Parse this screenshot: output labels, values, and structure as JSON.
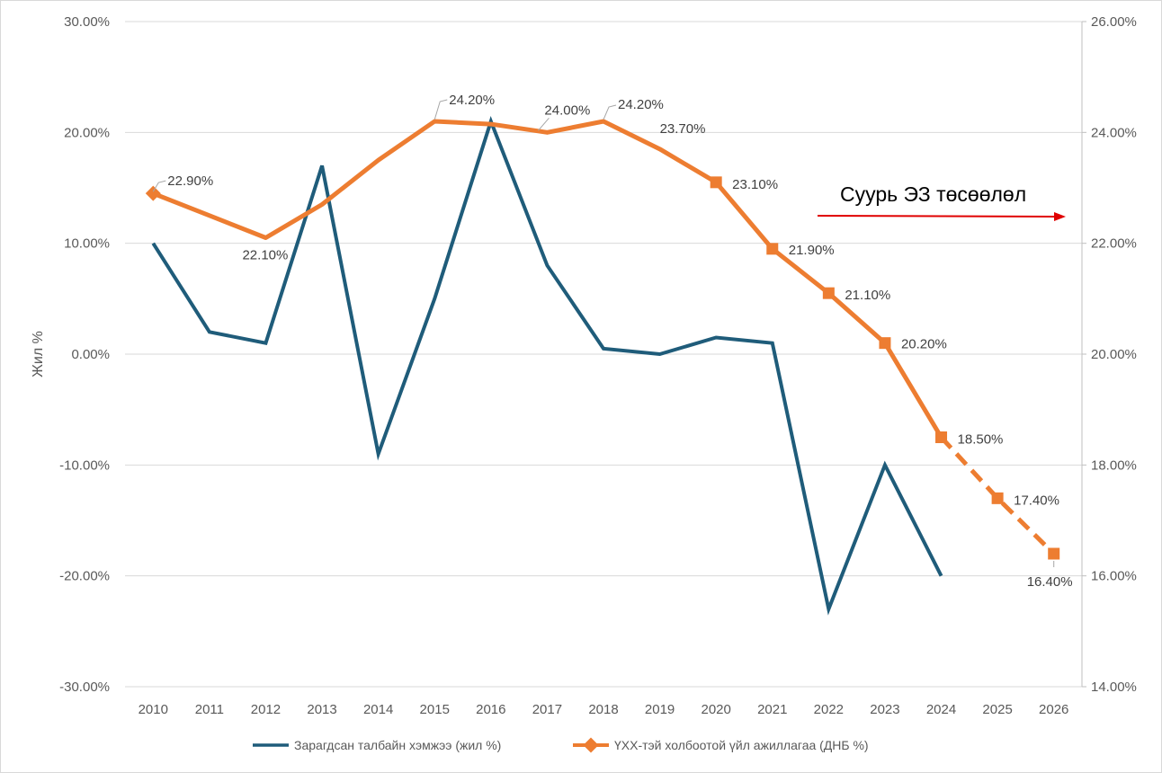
{
  "chart_data": {
    "type": "line",
    "title": "",
    "ylabel": "Жил %",
    "ylim": [
      -30,
      30
    ],
    "y2lim": [
      14,
      26
    ],
    "yticks": [
      "30.00%",
      "20.00%",
      "10.00%",
      "0.00%",
      "-10.00%",
      "-20.00%",
      "-30.00%"
    ],
    "y2ticks": [
      "26.00%",
      "24.00%",
      "22.00%",
      "20.00%",
      "18.00%",
      "16.00%",
      "14.00%"
    ],
    "categories": [
      "2010",
      "2011",
      "2012",
      "2013",
      "2014",
      "2015",
      "2016",
      "2017",
      "2018",
      "2019",
      "2020",
      "2021",
      "2022",
      "2023",
      "2024",
      "2025",
      "2026"
    ],
    "series": [
      {
        "name": "Зарагдсан талбайн хэмжээ (жил %)",
        "axis": "left",
        "color": "#1f5c7a",
        "values": [
          10,
          2,
          1,
          17,
          -9,
          5,
          21,
          8,
          0.5,
          0,
          1.5,
          1,
          -23,
          -10,
          -20,
          null,
          null
        ]
      },
      {
        "name": "ҮХХ-тэй холбоотой үйл ажиллагаа (ДНБ %)",
        "axis": "right",
        "color": "#ed7d31",
        "values": [
          22.9,
          22.5,
          22.1,
          22.7,
          23.5,
          24.2,
          24.15,
          24.0,
          24.2,
          23.7,
          23.1,
          21.9,
          21.1,
          20.2,
          18.5,
          17.4,
          16.4
        ],
        "labels": [
          "22.90%",
          null,
          "22.10%",
          null,
          null,
          "24.20%",
          null,
          "24.00%",
          "24.20%",
          "23.70%",
          "23.10%",
          "21.90%",
          "21.10%",
          "20.20%",
          "18.50%",
          "17.40%",
          "16.40%"
        ],
        "forecast_from": "2024"
      }
    ],
    "annotation": {
      "text": "Суурь ЭЗ төсөөлөл",
      "arrow_color": "#e00000"
    }
  }
}
